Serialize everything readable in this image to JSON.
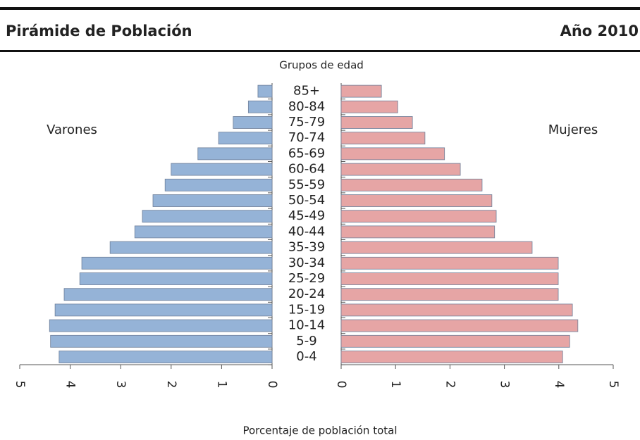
{
  "chart_data": {
    "type": "pyramid",
    "title": "Pirámide de Población",
    "subtitle": "Año 2010",
    "y_label": "Grupos de edad",
    "x_label": "Porcentaje de población total",
    "categories": [
      "0-4",
      "5-9",
      "10-14",
      "15-19",
      "20-24",
      "25-29",
      "30-34",
      "35-39",
      "40-44",
      "45-49",
      "50-54",
      "55-59",
      "60-64",
      "65-69",
      "70-74",
      "75-79",
      "80-84",
      "85+"
    ],
    "series": [
      {
        "name": "Varones",
        "color": "#95b3d7",
        "side": "left",
        "values": [
          4.22,
          4.39,
          4.41,
          4.3,
          4.12,
          3.81,
          3.77,
          3.21,
          2.72,
          2.57,
          2.36,
          2.12,
          2.0,
          1.47,
          1.06,
          0.77,
          0.47,
          0.28
        ]
      },
      {
        "name": "Mujeres",
        "color": "#e6a5a5",
        "side": "right",
        "values": [
          4.07,
          4.2,
          4.35,
          4.25,
          3.99,
          3.99,
          3.99,
          3.51,
          2.82,
          2.85,
          2.77,
          2.59,
          2.19,
          1.9,
          1.54,
          1.31,
          1.04,
          0.74
        ]
      }
    ],
    "xlim": [
      0,
      5
    ],
    "xticks": [
      0,
      1,
      2,
      3,
      4,
      5
    ]
  }
}
